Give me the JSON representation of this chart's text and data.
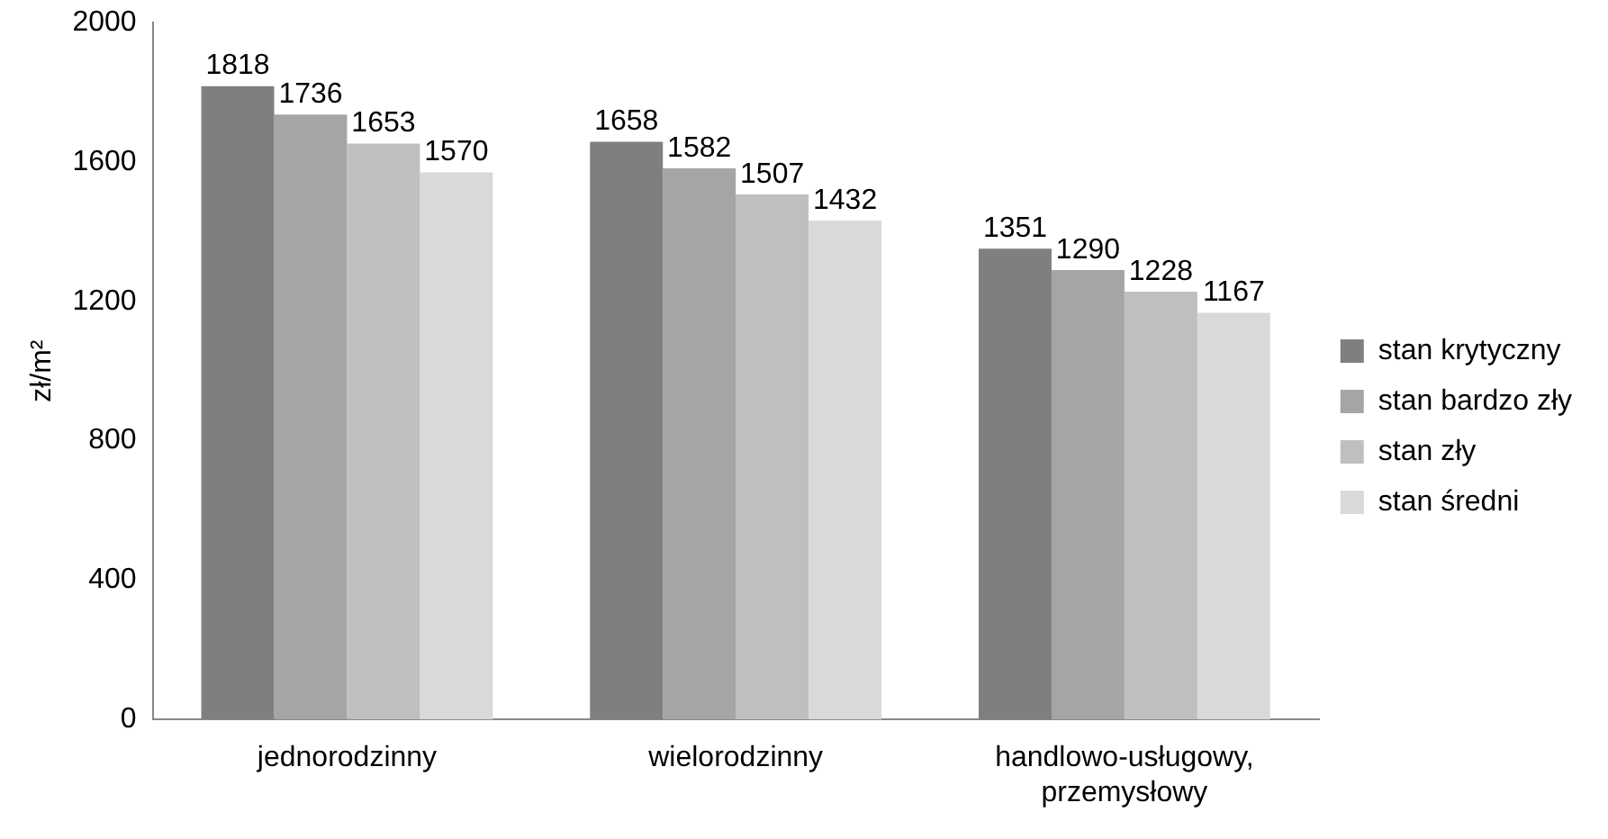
{
  "chart_data": {
    "type": "bar",
    "ylabel": "zł/m²",
    "categories": [
      "jednorodzinny",
      "wielorodzinny",
      "handlowo-usługowy, przemysłowy"
    ],
    "series": [
      {
        "name": "stan krytyczny",
        "color": "#7f7f7f",
        "values": [
          1818,
          1658,
          1351
        ]
      },
      {
        "name": "stan bardzo zły",
        "color": "#a5a5a5",
        "values": [
          1736,
          1582,
          1290
        ]
      },
      {
        "name": "stan zły",
        "color": "#bfbfbf",
        "values": [
          1653,
          1507,
          1228
        ]
      },
      {
        "name": "stan średni",
        "color": "#d9d9d9",
        "values": [
          1570,
          1432,
          1167
        ]
      }
    ],
    "ylim": [
      0,
      2000
    ],
    "yticks": [
      0,
      400,
      800,
      1200,
      1600,
      2000
    ],
    "grid": false,
    "legend": "right",
    "data_labels": true
  }
}
